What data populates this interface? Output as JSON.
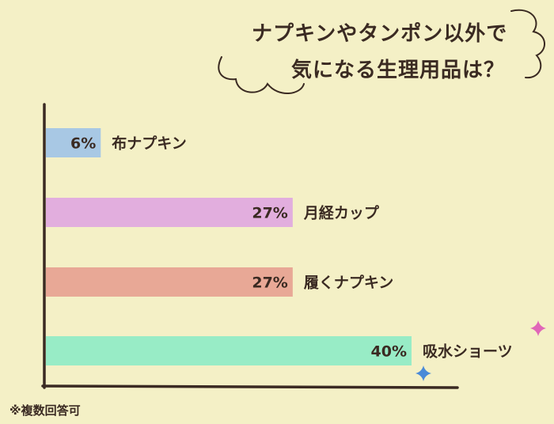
{
  "chart_data": {
    "type": "bar",
    "orientation": "horizontal",
    "title_lines": [
      "ナプキンやタンポン以外で",
      "気になる生理用品は？"
    ],
    "categories": [
      "布ナプキン",
      "月経カップ",
      "履くナプキン",
      "吸水ショーツ"
    ],
    "values": [
      6,
      27,
      27,
      40
    ],
    "value_labels": [
      "6%",
      "27%",
      "27%",
      "40%"
    ],
    "unit": "%",
    "bar_colors": [
      "#a8c8e4",
      "#e2aede",
      "#e8a896",
      "#98ecc6"
    ],
    "xlim": [
      0,
      40
    ],
    "grid": false,
    "legend": "none"
  },
  "footnote": "※複数回答可",
  "colors": {
    "background": "#f4f0c6",
    "axis": "#3a2a22",
    "text": "#3a2a22",
    "sparkle_pink": "#e066b8",
    "sparkle_blue": "#4a8ad8"
  },
  "decorations": [
    "cloud-outline",
    "sparkle-pink",
    "sparkle-blue"
  ]
}
